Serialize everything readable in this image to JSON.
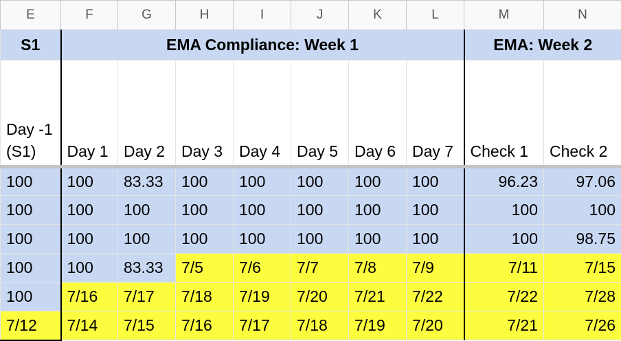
{
  "column_headers": [
    "E",
    "F",
    "G",
    "H",
    "I",
    "J",
    "K",
    "L",
    "M",
    "N"
  ],
  "group_row": {
    "s1_label": "S1",
    "week1_label": "EMA Compliance: Week 1",
    "week2_label": "EMA: Week 2"
  },
  "header_row": [
    "Day -1 (S1)",
    "Day 1",
    "Day 2",
    "Day 3",
    "Day 4",
    "Day 5",
    "Day 6",
    "Day 7",
    "Check 1",
    "Check 2"
  ],
  "rows": [
    [
      "100",
      "100",
      "83.33",
      "100",
      "100",
      "100",
      "100",
      "100",
      "96.23",
      "97.06"
    ],
    [
      "100",
      "100",
      "100",
      "100",
      "100",
      "100",
      "100",
      "100",
      "100",
      "100"
    ],
    [
      "100",
      "100",
      "100",
      "100",
      "100",
      "100",
      "100",
      "100",
      "100",
      "98.75"
    ],
    [
      "100",
      "100",
      "83.33",
      "7/5",
      "7/6",
      "7/7",
      "7/8",
      "7/9",
      "7/11",
      "7/15"
    ],
    [
      "100",
      "7/16",
      "7/17",
      "7/18",
      "7/19",
      "7/20",
      "7/21",
      "7/22",
      "7/22",
      "7/28"
    ],
    [
      "7/12",
      "7/14",
      "7/15",
      "7/16",
      "7/17",
      "7/18",
      "7/19",
      "7/20",
      "7/21",
      "7/26"
    ]
  ],
  "cell_fill": [
    [
      "blue",
      "blue",
      "blue",
      "blue",
      "blue",
      "blue",
      "blue",
      "blue",
      "blue",
      "blue"
    ],
    [
      "blue",
      "blue",
      "blue",
      "blue",
      "blue",
      "blue",
      "blue",
      "blue",
      "blue",
      "blue"
    ],
    [
      "blue",
      "blue",
      "blue",
      "blue",
      "blue",
      "blue",
      "blue",
      "blue",
      "blue",
      "blue"
    ],
    [
      "blue",
      "blue",
      "blue",
      "yellow",
      "yellow",
      "yellow",
      "yellow",
      "yellow",
      "yellow",
      "yellow"
    ],
    [
      "blue",
      "yellow",
      "yellow",
      "yellow",
      "yellow",
      "yellow",
      "yellow",
      "yellow",
      "yellow",
      "yellow"
    ],
    [
      "yellow",
      "yellow",
      "yellow",
      "yellow",
      "yellow",
      "yellow",
      "yellow",
      "yellow",
      "yellow",
      "yellow"
    ]
  ],
  "colors": {
    "blue_fill": "#c9d8f2",
    "yellow_fill": "#fdfd3f",
    "header_bg": "#f8f9fa",
    "gridline": "#e2e3e3",
    "border_dark": "#000000"
  }
}
